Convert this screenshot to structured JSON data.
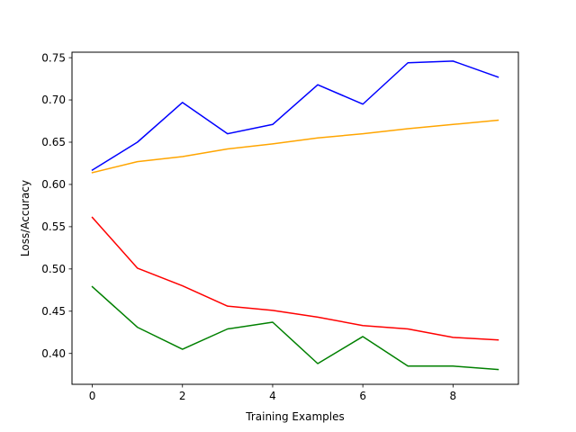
{
  "chart_data": {
    "type": "line",
    "title": "",
    "xlabel": "Training Examples",
    "ylabel": "Loss/Accuracy",
    "xlim": [
      -0.45,
      9.45
    ],
    "ylim": [
      0.3635,
      0.7565
    ],
    "x_ticks": [
      0,
      2,
      4,
      6,
      8
    ],
    "y_ticks": [
      0.4,
      0.45,
      0.5,
      0.55,
      0.6,
      0.65,
      0.7,
      0.75
    ],
    "y_tick_labels": [
      "0.40",
      "0.45",
      "0.50",
      "0.55",
      "0.60",
      "0.65",
      "0.70",
      "0.75"
    ],
    "grid": false,
    "legend": "none",
    "x": [
      0,
      1,
      2,
      3,
      4,
      5,
      6,
      7,
      8,
      9
    ],
    "series": [
      {
        "color": "#0000ff",
        "values": [
          0.617,
          0.65,
          0.697,
          0.66,
          0.671,
          0.718,
          0.695,
          0.744,
          0.746,
          0.727
        ]
      },
      {
        "color": "#ffa500",
        "values": [
          0.614,
          0.627,
          0.633,
          0.642,
          0.648,
          0.655,
          0.66,
          0.666,
          0.671,
          0.676
        ]
      },
      {
        "color": "#ff0000",
        "values": [
          0.561,
          0.501,
          0.48,
          0.456,
          0.451,
          0.443,
          0.433,
          0.429,
          0.419,
          0.416
        ]
      },
      {
        "color": "#008000",
        "values": [
          0.479,
          0.431,
          0.405,
          0.429,
          0.437,
          0.388,
          0.42,
          0.385,
          0.385,
          0.381
        ]
      }
    ]
  }
}
